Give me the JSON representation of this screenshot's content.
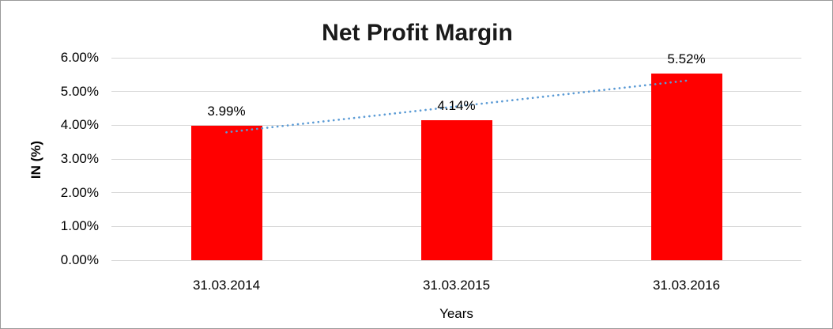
{
  "chart_data": {
    "type": "bar",
    "title": "Net Profit Margin",
    "categories": [
      "31.03.2014",
      "31.03.2015",
      "31.03.2016"
    ],
    "values": [
      3.99,
      4.14,
      5.52
    ],
    "data_labels": [
      "3.99%",
      "4.14%",
      "5.52%"
    ],
    "xlabel": "Years",
    "ylabel": "IN (%)",
    "ylim": [
      0,
      6
    ],
    "ytick_labels": [
      "0.00%",
      "1.00%",
      "2.00%",
      "3.00%",
      "4.00%",
      "5.00%",
      "6.00%"
    ],
    "grid": true,
    "legend": "none",
    "colors": {
      "bar": "#FF0000",
      "gridline": "#D6D6D6",
      "trendline": "#5B9BD5",
      "text": "#000000",
      "background": "#FFFFFF"
    },
    "trendline": {
      "type": "linear",
      "style": "dotted",
      "start_value": 3.79,
      "end_value": 5.32
    }
  }
}
